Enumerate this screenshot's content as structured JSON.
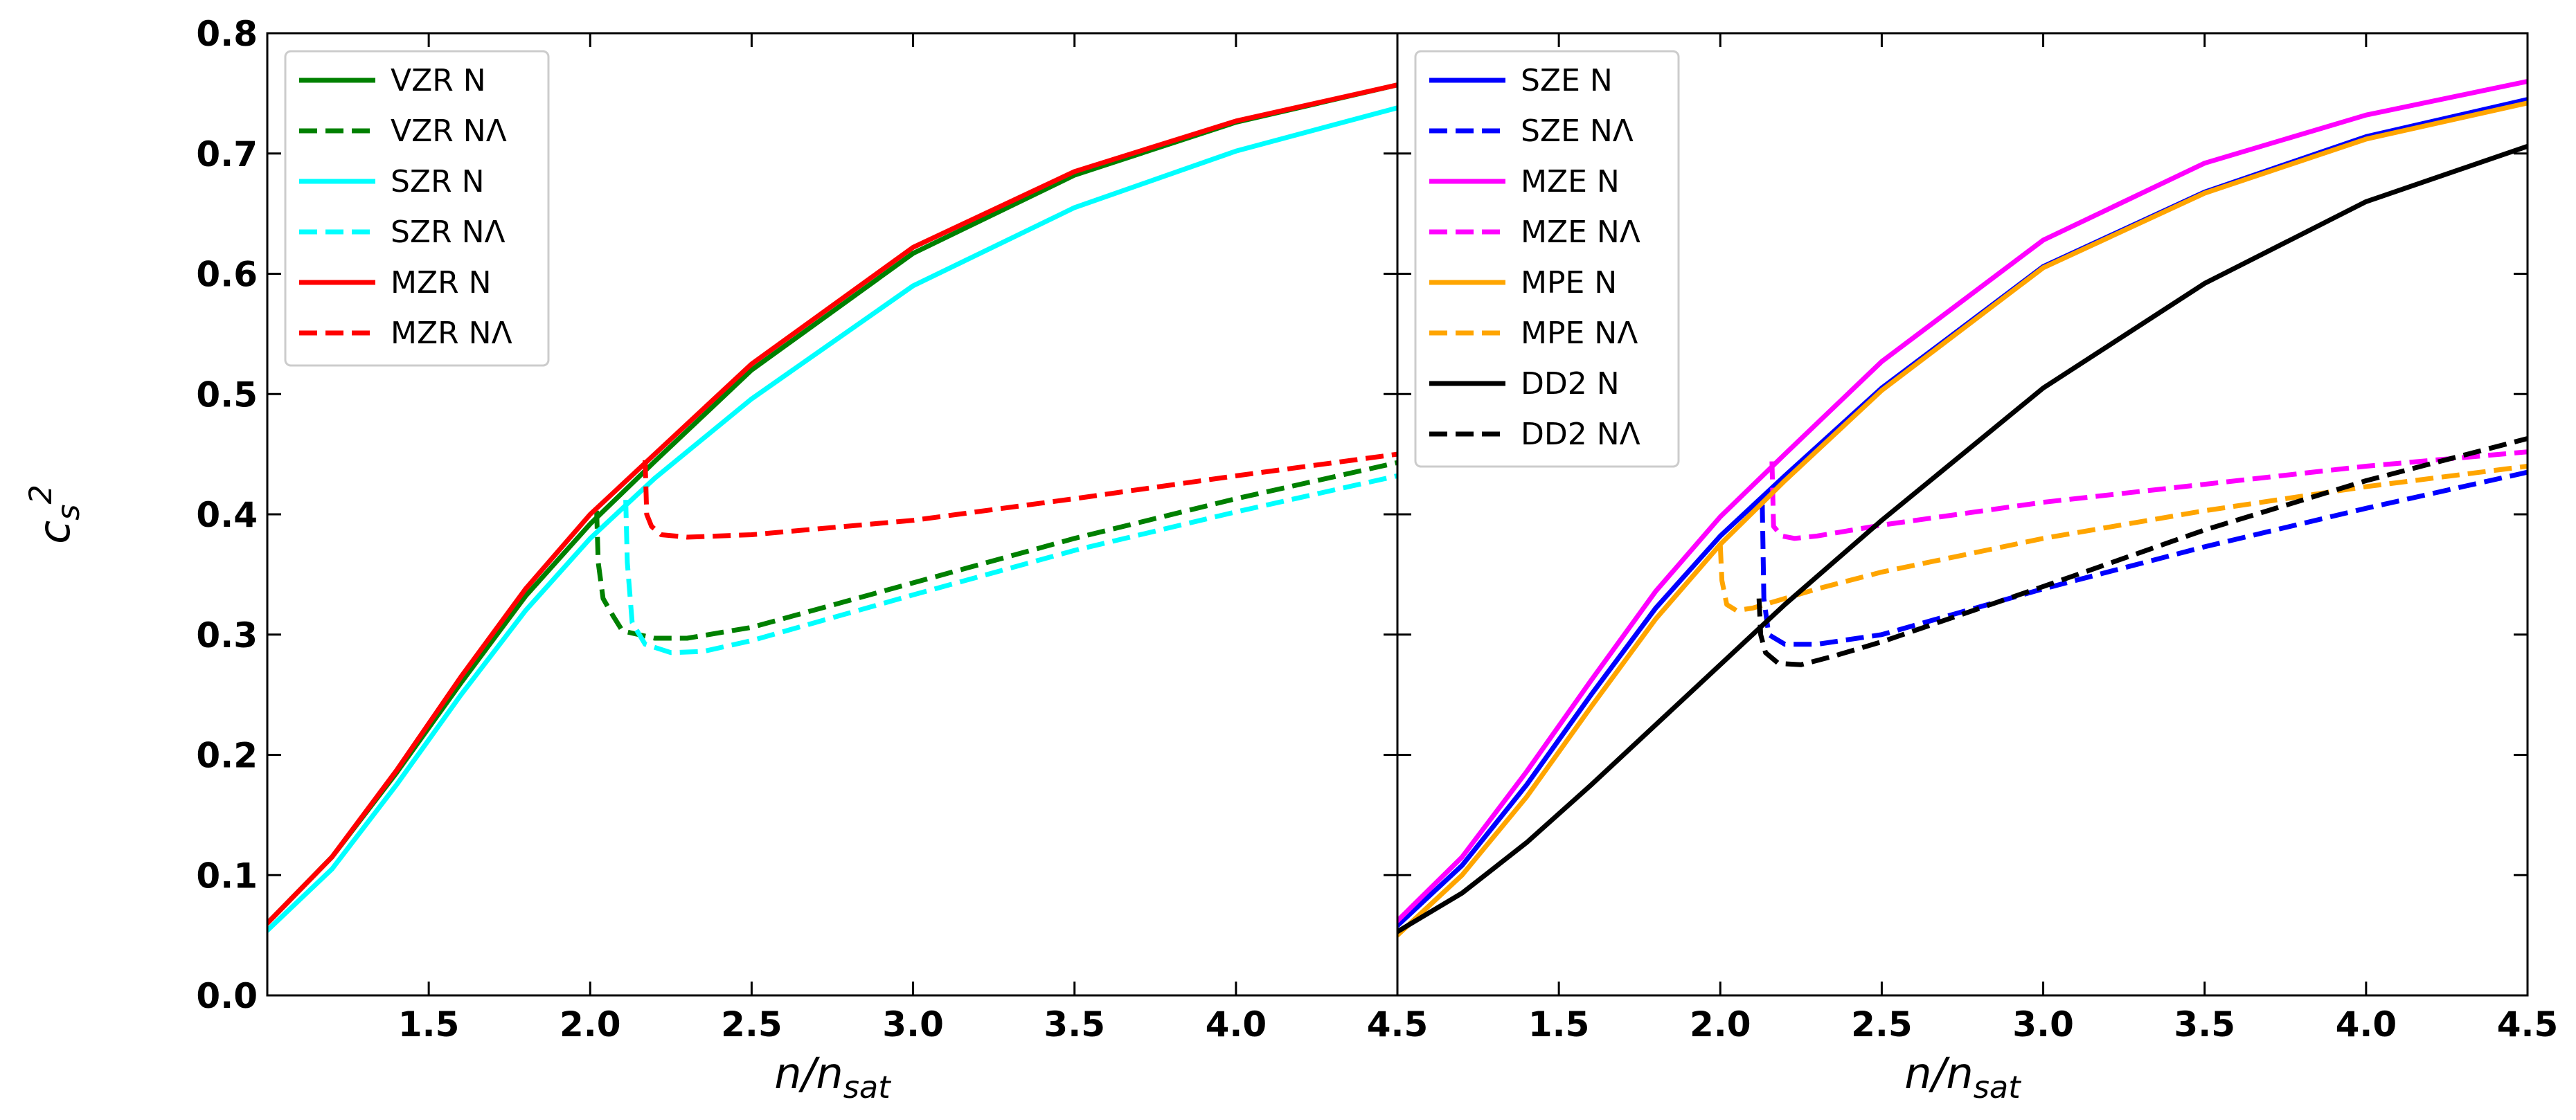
{
  "chart_data": [
    {
      "type": "line",
      "panel": "left",
      "ylabel": "c_s^2",
      "xlabel": "n/n_sat",
      "xlim": [
        1.0,
        4.5
      ],
      "ylim": [
        0.0,
        0.8
      ],
      "xticks": [
        "1.5",
        "2.0",
        "2.5",
        "3.0",
        "3.5",
        "4.0",
        "4.5"
      ],
      "yticks": [
        "0.0",
        "0.1",
        "0.2",
        "0.3",
        "0.4",
        "0.5",
        "0.6",
        "0.7",
        "0.8"
      ],
      "legend_position": "top-left",
      "series": [
        {
          "name": "VZR N",
          "color": "#008000",
          "dash": "solid",
          "x": [
            1.0,
            1.2,
            1.4,
            1.6,
            1.8,
            2.0,
            2.2,
            2.5,
            3.0,
            3.5,
            4.0,
            4.5
          ],
          "y": [
            0.06,
            0.115,
            0.185,
            0.26,
            0.332,
            0.392,
            0.444,
            0.52,
            0.617,
            0.682,
            0.726,
            0.757
          ]
        },
        {
          "name": "VZR NΛ",
          "color": "#008000",
          "dash": "dashed",
          "x": [
            2.02,
            2.025,
            2.04,
            2.07,
            2.1,
            2.2,
            2.3,
            2.5,
            3.0,
            3.5,
            4.0,
            4.5
          ],
          "y": [
            0.403,
            0.36,
            0.33,
            0.316,
            0.303,
            0.297,
            0.297,
            0.306,
            0.343,
            0.38,
            0.413,
            0.443
          ]
        },
        {
          "name": "SZR N",
          "color": "#00FFFF",
          "dash": "solid",
          "x": [
            1.0,
            1.2,
            1.4,
            1.6,
            1.8,
            2.0,
            2.2,
            2.5,
            3.0,
            3.5,
            4.0,
            4.5
          ],
          "y": [
            0.054,
            0.105,
            0.175,
            0.25,
            0.32,
            0.38,
            0.43,
            0.496,
            0.59,
            0.655,
            0.702,
            0.738
          ]
        },
        {
          "name": "SZR NΛ",
          "color": "#00FFFF",
          "dash": "dashed",
          "x": [
            2.11,
            2.115,
            2.13,
            2.17,
            2.25,
            2.35,
            2.5,
            3.0,
            3.5,
            4.0,
            4.5
          ],
          "y": [
            0.412,
            0.36,
            0.31,
            0.292,
            0.285,
            0.286,
            0.295,
            0.333,
            0.37,
            0.402,
            0.432
          ]
        },
        {
          "name": "MZR N",
          "color": "#FF0000",
          "dash": "solid",
          "x": [
            1.0,
            1.2,
            1.4,
            1.6,
            1.8,
            2.0,
            2.2,
            2.5,
            3.0,
            3.5,
            4.0,
            4.5
          ],
          "y": [
            0.06,
            0.115,
            0.187,
            0.265,
            0.338,
            0.4,
            0.45,
            0.525,
            0.622,
            0.685,
            0.727,
            0.757
          ]
        },
        {
          "name": "MZR NΛ",
          "color": "#FF0000",
          "dash": "dashed",
          "x": [
            2.17,
            2.175,
            2.19,
            2.22,
            2.3,
            2.5,
            3.0,
            3.5,
            4.0,
            4.5
          ],
          "y": [
            0.445,
            0.4,
            0.39,
            0.383,
            0.381,
            0.383,
            0.395,
            0.413,
            0.432,
            0.45
          ]
        }
      ]
    },
    {
      "type": "line",
      "panel": "right",
      "xlabel": "n/n_sat",
      "xlim": [
        1.0,
        4.5
      ],
      "ylim": [
        0.0,
        0.8
      ],
      "xticks": [
        "1.5",
        "2.0",
        "2.5",
        "3.0",
        "3.5",
        "4.0",
        "4.5"
      ],
      "legend_position": "top-left",
      "series": [
        {
          "name": "SZE N",
          "color": "#0000FF",
          "dash": "solid",
          "x": [
            1.0,
            1.2,
            1.4,
            1.6,
            1.8,
            2.0,
            2.2,
            2.5,
            3.0,
            3.5,
            4.0,
            4.5
          ],
          "y": [
            0.058,
            0.108,
            0.175,
            0.25,
            0.322,
            0.382,
            0.432,
            0.505,
            0.606,
            0.668,
            0.714,
            0.745
          ]
        },
        {
          "name": "SZE NΛ",
          "color": "#0000FF",
          "dash": "dashed",
          "x": [
            2.13,
            2.135,
            2.15,
            2.2,
            2.3,
            2.5,
            3.0,
            3.5,
            4.0,
            4.5
          ],
          "y": [
            0.408,
            0.33,
            0.3,
            0.292,
            0.292,
            0.3,
            0.338,
            0.373,
            0.405,
            0.435
          ]
        },
        {
          "name": "MZE N",
          "color": "#FF00FF",
          "dash": "solid",
          "x": [
            1.0,
            1.2,
            1.4,
            1.6,
            1.8,
            2.0,
            2.2,
            2.5,
            3.0,
            3.5,
            4.0,
            4.5
          ],
          "y": [
            0.062,
            0.115,
            0.186,
            0.262,
            0.336,
            0.398,
            0.45,
            0.527,
            0.628,
            0.692,
            0.732,
            0.76
          ]
        },
        {
          "name": "MZE NΛ",
          "color": "#FF00FF",
          "dash": "dashed",
          "x": [
            2.16,
            2.165,
            2.19,
            2.23,
            2.3,
            2.5,
            3.0,
            3.5,
            4.0,
            4.5
          ],
          "y": [
            0.444,
            0.39,
            0.382,
            0.38,
            0.382,
            0.391,
            0.41,
            0.425,
            0.44,
            0.452
          ]
        },
        {
          "name": "MPE N",
          "color": "#FFA500",
          "dash": "solid",
          "x": [
            1.0,
            1.2,
            1.4,
            1.6,
            1.8,
            2.0,
            2.2,
            2.5,
            3.0,
            3.5,
            4.0,
            4.5
          ],
          "y": [
            0.05,
            0.1,
            0.165,
            0.24,
            0.313,
            0.375,
            0.428,
            0.503,
            0.605,
            0.667,
            0.712,
            0.742
          ]
        },
        {
          "name": "MPE NΛ",
          "color": "#FFA500",
          "dash": "dashed",
          "x": [
            2.0,
            2.005,
            2.02,
            2.05,
            2.1,
            2.2,
            2.3,
            2.5,
            3.0,
            3.5,
            4.0,
            4.5
          ],
          "y": [
            0.374,
            0.345,
            0.325,
            0.32,
            0.322,
            0.33,
            0.338,
            0.352,
            0.38,
            0.403,
            0.423,
            0.44
          ]
        },
        {
          "name": "DD2 N",
          "color": "#000000",
          "dash": "solid",
          "x": [
            1.0,
            1.2,
            1.4,
            1.6,
            1.8,
            2.0,
            2.2,
            2.5,
            3.0,
            3.5,
            4.0,
            4.5
          ],
          "y": [
            0.053,
            0.085,
            0.127,
            0.175,
            0.225,
            0.275,
            0.325,
            0.395,
            0.505,
            0.592,
            0.66,
            0.706
          ]
        },
        {
          "name": "DD2 NΛ",
          "color": "#000000",
          "dash": "dashed",
          "x": [
            2.12,
            2.125,
            2.14,
            2.18,
            2.25,
            2.35,
            2.5,
            3.0,
            3.5,
            4.0,
            4.5
          ],
          "y": [
            0.33,
            0.3,
            0.285,
            0.276,
            0.275,
            0.282,
            0.294,
            0.34,
            0.387,
            0.428,
            0.463
          ]
        }
      ]
    }
  ]
}
